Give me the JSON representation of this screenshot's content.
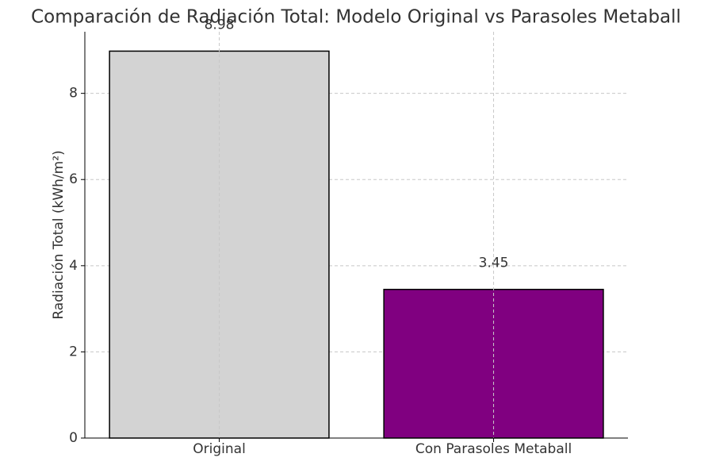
{
  "chart_data": {
    "type": "bar",
    "title": "Comparación de Radiación Total: Modelo Original vs Parasoles Metaball",
    "y_label": "Radiación Total (kWh/m²)",
    "categories": [
      "Original",
      "Con Parasoles Metaball"
    ],
    "values": [
      8.98,
      3.45
    ],
    "colors": [
      "#d3d3d3",
      "#800080"
    ],
    "edge_color": "#000000",
    "ylim": [
      0,
      9.43
    ],
    "yticks": [
      0,
      2,
      4,
      6,
      8
    ],
    "grid": true
  }
}
